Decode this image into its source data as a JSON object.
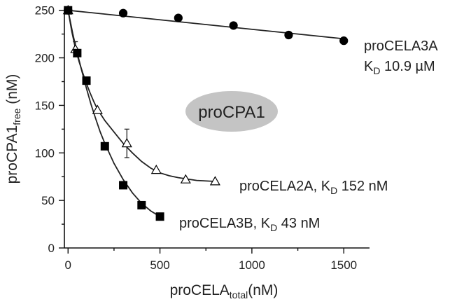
{
  "chart_data": {
    "type": "scatter",
    "xlabel": {
      "main": "proCELA",
      "sub": "total",
      "suffix": "(nM)"
    },
    "ylabel": {
      "main": "proCPA1",
      "sub": "free",
      "suffix": " (nM)"
    },
    "xlim": [
      -20,
      1640
    ],
    "ylim": [
      0,
      252
    ],
    "x_ticks": [
      0,
      500,
      1000,
      1500
    ],
    "y_ticks": [
      0,
      50,
      100,
      150,
      200,
      250
    ],
    "badge": {
      "text": "proCPA1",
      "color": "#c4c4c4"
    },
    "series": [
      {
        "marker": "circle",
        "color": "#000000",
        "label_lines": [
          {
            "text": "proCELA3A"
          },
          {
            "pre": "K",
            "sub": "D",
            "post": " 10.9 µM"
          }
        ],
        "points": [
          [
            0,
            250
          ],
          [
            300,
            247
          ],
          [
            600,
            242
          ],
          [
            900,
            234
          ],
          [
            1200,
            224
          ],
          [
            1500,
            218
          ]
        ],
        "errors": [
          0,
          0,
          0,
          0,
          0,
          0
        ],
        "fit": [
          [
            0,
            250
          ],
          [
            1500,
            220
          ]
        ]
      },
      {
        "marker": "triangle",
        "color": "#ffffff",
        "label_lines": [
          {
            "pre": "proCELA2A, K",
            "sub": "D",
            "post": " 152 nM"
          }
        ],
        "points": [
          [
            0,
            250
          ],
          [
            40,
            209
          ],
          [
            160,
            145
          ],
          [
            320,
            110
          ],
          [
            480,
            82
          ],
          [
            640,
            72
          ],
          [
            800,
            70
          ]
        ],
        "errors": [
          0,
          8,
          0,
          15,
          0,
          0,
          0
        ],
        "fit": [
          [
            0,
            250
          ],
          [
            20,
            228
          ],
          [
            40,
            210
          ],
          [
            60,
            196
          ],
          [
            80,
            184
          ],
          [
            100,
            173
          ],
          [
            120,
            163
          ],
          [
            140,
            154
          ],
          [
            160,
            146
          ],
          [
            200,
            134
          ],
          [
            250,
            122
          ],
          [
            300,
            110
          ],
          [
            350,
            100
          ],
          [
            400,
            91
          ],
          [
            450,
            84
          ],
          [
            500,
            79
          ],
          [
            550,
            76
          ],
          [
            600,
            74
          ],
          [
            700,
            71
          ],
          [
            800,
            70
          ]
        ]
      },
      {
        "marker": "square",
        "color": "#000000",
        "label_lines": [
          {
            "pre": "proCELA3B, K",
            "sub": "D",
            "post": " 43 nM"
          }
        ],
        "points": [
          [
            0,
            250
          ],
          [
            50,
            205
          ],
          [
            100,
            176
          ],
          [
            200,
            107
          ],
          [
            300,
            66
          ],
          [
            400,
            45
          ],
          [
            500,
            33
          ]
        ],
        "errors": [
          0,
          0,
          0,
          0,
          0,
          0,
          0
        ],
        "fit": [
          [
            0,
            250
          ],
          [
            25,
            226
          ],
          [
            50,
            205
          ],
          [
            75,
            186
          ],
          [
            100,
            168
          ],
          [
            125,
            151
          ],
          [
            150,
            136
          ],
          [
            175,
            122
          ],
          [
            200,
            110
          ],
          [
            250,
            89
          ],
          [
            300,
            72
          ],
          [
            350,
            58
          ],
          [
            400,
            47
          ],
          [
            450,
            39
          ],
          [
            500,
            33
          ]
        ]
      }
    ]
  }
}
